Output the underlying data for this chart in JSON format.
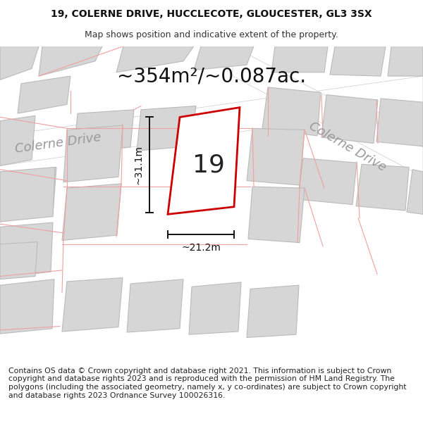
{
  "title_line1": "19, COLERNE DRIVE, HUCCLECOTE, GLOUCESTER, GL3 3SX",
  "title_line2": "Map shows position and indicative extent of the property.",
  "area_label": "~354m²/~0.087ac.",
  "property_number": "19",
  "dim_width": "~21.2m",
  "dim_height": "~31.1m",
  "footer_text": "Contains OS data © Crown copyright and database right 2021. This information is subject to Crown copyright and database rights 2023 and is reproduced with the permission of HM Land Registry. The polygons (including the associated geometry, namely x, y co-ordinates) are subject to Crown copyright and database rights 2023 Ordnance Survey 100026316.",
  "map_bg": "#f2f2f2",
  "building_fill": "#d6d6d6",
  "building_edge": "#bbbbbb",
  "highlight_fill": "#ffffff",
  "highlight_edge": "#cc0000",
  "road_label_color": "#999999",
  "pink": "#f0a0a0",
  "dim_color": "#111111",
  "title_fontsize": 10,
  "subtitle_fontsize": 9,
  "area_fontsize": 20,
  "prop_number_fontsize": 26,
  "dim_label_fontsize": 10,
  "road_label_fontsize": 13,
  "footer_fontsize": 7.8
}
